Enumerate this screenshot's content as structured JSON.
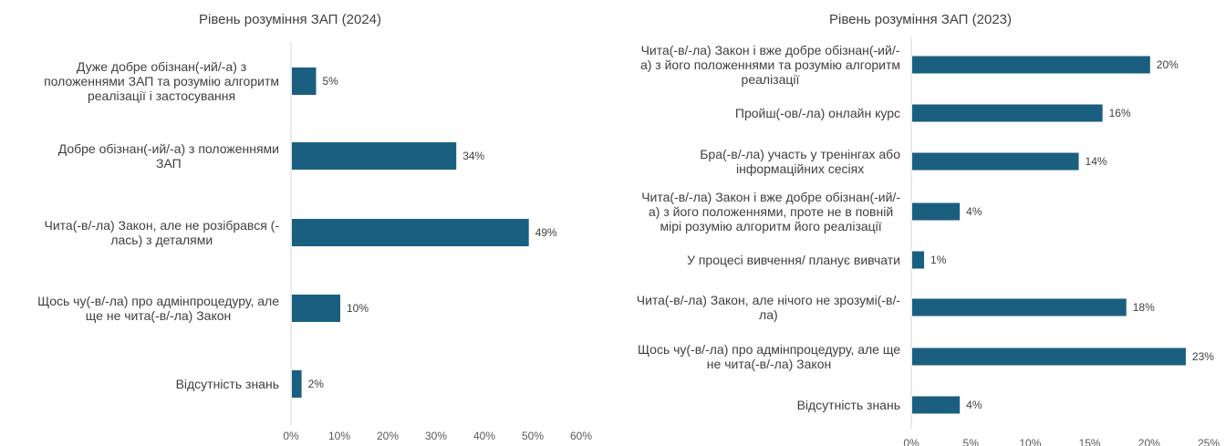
{
  "chart_data": [
    {
      "type": "bar",
      "orientation": "horizontal",
      "title": "Рівень розуміння ЗАП (2024)",
      "categories": [
        "Дуже добре обізнан(-ий/-а) з положеннями ЗАП та розумію алгоритм реалізації і застосування",
        "Добре обізнан(-ий/-а) з положеннями ЗАП",
        "Чита(-в/-ла) Закон, але не розібрався (-лась) з деталями",
        "Щось чу(-в/-ла) про адмінпроцедуру, але ще не чита(-в/-ла) Закон",
        "Відсутність знань"
      ],
      "category_lines": [
        [
          "Дуже добре обізнан(-ий/-а) з",
          "положеннями ЗАП та розумію алгоритм",
          "реалізації і застосування"
        ],
        [
          "Добре обізнан(-ий/-а) з положеннями",
          "ЗАП"
        ],
        [
          "Чита(-в/-ла) Закон, але не розібрався (-",
          "лась) з деталями"
        ],
        [
          "Щось чу(-в/-ла) про адмінпроцедуру, але",
          "ще не чита(-в/-ла) Закон"
        ],
        [
          "Відсутність знань"
        ]
      ],
      "values": [
        5,
        34,
        49,
        10,
        2
      ],
      "value_labels": [
        "5%",
        "34%",
        "49%",
        "10%",
        "2%"
      ],
      "xlim": [
        0,
        60
      ],
      "ticks": [
        "0%",
        "10%",
        "20%",
        "30%",
        "40%",
        "50%",
        "60%"
      ],
      "bar_color": "#1b5f80",
      "grid": false
    },
    {
      "type": "bar",
      "orientation": "horizontal",
      "title": "Рівень розуміння ЗАП (2023)",
      "categories": [
        "Чита(-в/-ла) Закон і вже добре обізнан(-ий/-а) з його положеннями та розумію алгоритм реалізації",
        "Пройш(-ов/-ла) онлайн курс",
        "Бра(-в/-ла) участь у тренінгах або інформаційних сесіях",
        "Чита(-в/-ла) Закон і вже добре обізнан(-ий/-а) з його положеннями, проте не в повній мірі розумію алгоритм його реалізації",
        "У процесі вивчення/ планує вивчати",
        "Чита(-в/-ла) Закон, але нічого не зрозумі(-в/-ла)",
        "Щось чу(-в/-ла) про адмінпроцедуру, але ще не чита(-в/-ла) Закон",
        "Відсутність знань"
      ],
      "category_lines": [
        [
          "Чита(-в/-ла) Закон і вже добре обізнан(-ий/-",
          "а) з його положеннями та розумію алгоритм",
          "реалізації"
        ],
        [
          "Пройш(-ов/-ла) онлайн курс"
        ],
        [
          "Бра(-в/-ла) участь у тренінгах або",
          "інформаційних сесіях"
        ],
        [
          "Чита(-в/-ла) Закон і вже добре обізнан(-ий/-",
          "а) з його положеннями, проте не в повній",
          "мірі розумію алгоритм його реалізації"
        ],
        [
          "У процесі вивчення/ планує вивчати"
        ],
        [
          "Чита(-в/-ла) Закон, але нічого не зрозумі(-в/-",
          "ла)"
        ],
        [
          "Щось чу(-в/-ла) про адмінпроцедуру, але ще",
          "не чита(-в/-ла) Закон"
        ],
        [
          "Відсутність знань"
        ]
      ],
      "values": [
        20,
        16,
        14,
        4,
        1,
        18,
        23,
        4
      ],
      "value_labels": [
        "20%",
        "16%",
        "14%",
        "4%",
        "1%",
        "18%",
        "23%",
        "4%"
      ],
      "xlim": [
        0,
        25
      ],
      "ticks": [
        "0%",
        "5%",
        "10%",
        "15%",
        "20%",
        "25%"
      ],
      "bar_color": "#1b5f80",
      "grid": false
    }
  ]
}
